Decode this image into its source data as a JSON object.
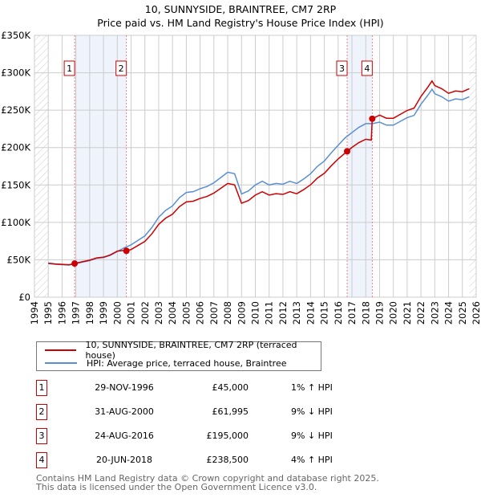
{
  "chart_data": {
    "type": "line",
    "title": "10, SUNNYSIDE, BRAINTREE, CM7 2RP",
    "subtitle": "Price paid vs. HM Land Registry's House Price Index (HPI)",
    "xlim": [
      1994,
      2026
    ],
    "ylim": [
      0,
      350000
    ],
    "yticks": [
      0,
      50000,
      100000,
      150000,
      200000,
      250000,
      300000,
      350000
    ],
    "ytick_labels": [
      "£0",
      "£50K",
      "£100K",
      "£150K",
      "£200K",
      "£250K",
      "£300K",
      "£350K"
    ],
    "xticks": [
      1994,
      1995,
      1996,
      1997,
      1998,
      1999,
      2000,
      2001,
      2002,
      2003,
      2004,
      2005,
      2006,
      2007,
      2008,
      2009,
      2010,
      2011,
      2012,
      2013,
      2014,
      2015,
      2016,
      2017,
      2018,
      2019,
      2020,
      2021,
      2022,
      2023,
      2024,
      2025,
      2026
    ],
    "grid": true,
    "series": [
      {
        "name": "10, SUNNYSIDE, BRAINTREE, CM7 2RP (terraced house)",
        "color": "#cc0000",
        "x": [
          1995,
          1995.5,
          1996,
          1996.5,
          1996.91,
          1997,
          1997.5,
          1998,
          1998.5,
          1999,
          1999.5,
          2000,
          2000.5,
          2000.66,
          2001,
          2001.5,
          2002,
          2002.5,
          2003,
          2003.5,
          2004,
          2004.5,
          2005,
          2005.5,
          2006,
          2006.5,
          2007,
          2007.5,
          2008,
          2008.5,
          2009,
          2009.5,
          2010,
          2010.5,
          2011,
          2011.5,
          2012,
          2012.5,
          2013,
          2013.5,
          2014,
          2014.5,
          2015,
          2015.5,
          2016,
          2016.65,
          2017,
          2017.5,
          2018,
          2018.4,
          2018.47,
          2019,
          2019.5,
          2020,
          2020.5,
          2021,
          2021.5,
          2022,
          2022.5,
          2022.8,
          2023,
          2023.5,
          2024,
          2024.5,
          2025,
          2025.5
        ],
        "y": [
          45500,
          44400,
          43900,
          43400,
          45000,
          45500,
          47500,
          49500,
          52500,
          53500,
          56600,
          61600,
          62500,
          61995,
          63700,
          69200,
          74600,
          84600,
          97400,
          105600,
          111000,
          121000,
          127400,
          128300,
          132000,
          134700,
          139200,
          145600,
          152000,
          150200,
          125600,
          129200,
          136500,
          141000,
          136500,
          138300,
          137400,
          141000,
          138300,
          143800,
          150200,
          159300,
          165600,
          175600,
          184700,
          195000,
          200200,
          206600,
          211100,
          210000,
          238500,
          243400,
          239200,
          239200,
          244400,
          249600,
          252700,
          268300,
          280800,
          289000,
          282900,
          278700,
          272500,
          275600,
          274600,
          278700
        ]
      },
      {
        "name": "HPI: Average price, terraced house, Braintree",
        "color": "#5b8fd4",
        "x": [
          1995,
          1995.5,
          1996,
          1996.5,
          1997,
          1997.5,
          1998,
          1998.5,
          1999,
          1999.5,
          2000,
          2000.5,
          2001,
          2001.5,
          2002,
          2002.5,
          2003,
          2003.5,
          2004,
          2004.5,
          2005,
          2005.5,
          2006,
          2006.5,
          2007,
          2007.5,
          2008,
          2008.5,
          2009,
          2009.5,
          2010,
          2010.5,
          2011,
          2011.5,
          2012,
          2012.5,
          2013,
          2013.5,
          2014,
          2014.5,
          2015,
          2015.5,
          2016,
          2016.5,
          2017,
          2017.5,
          2018,
          2018.5,
          2019,
          2019.5,
          2020,
          2020.5,
          2021,
          2021.5,
          2022,
          2022.5,
          2022.8,
          2023,
          2023.5,
          2024,
          2024.5,
          2025,
          2025.5
        ],
        "y": [
          45000,
          44000,
          43500,
          43000,
          45000,
          47000,
          49000,
          52000,
          53000,
          56000,
          61000,
          66000,
          70000,
          76000,
          82000,
          93000,
          107000,
          116000,
          122000,
          133000,
          140000,
          141000,
          145000,
          148000,
          153000,
          160000,
          167000,
          165000,
          138000,
          142000,
          150000,
          155000,
          150000,
          152000,
          151000,
          155000,
          152000,
          158000,
          165000,
          175000,
          182000,
          193000,
          203000,
          213000,
          220000,
          227000,
          232000,
          232000,
          234000,
          230000,
          230000,
          235000,
          240000,
          243000,
          258000,
          270000,
          278000,
          272000,
          268000,
          262000,
          265000,
          264000,
          268000
        ]
      }
    ],
    "sales": [
      {
        "n": "1",
        "x": 1996.91,
        "date": "29-NOV-1996",
        "price": 45000,
        "price_label": "£45,000",
        "hpi": "1% ↑ HPI"
      },
      {
        "n": "2",
        "x": 2000.66,
        "date": "31-AUG-2000",
        "price": 61995,
        "price_label": "£61,995",
        "hpi": "9% ↓ HPI"
      },
      {
        "n": "3",
        "x": 2016.65,
        "date": "24-AUG-2016",
        "price": 195000,
        "price_label": "£195,000",
        "hpi": "9% ↓ HPI"
      },
      {
        "n": "4",
        "x": 2018.47,
        "date": "20-JUN-2018",
        "price": 238500,
        "price_label": "£238,500",
        "hpi": "4% ↑ HPI"
      }
    ],
    "shaded": [
      [
        1996.91,
        2000.66
      ],
      [
        2016.65,
        2018.47
      ]
    ],
    "hatched": [
      [
        1994,
        1995
      ],
      [
        2025.5,
        2026
      ]
    ]
  },
  "footer": [
    "Contains HM Land Registry data © Crown copyright and database right 2025.",
    "This data is licensed under the Open Government Licence v3.0."
  ]
}
